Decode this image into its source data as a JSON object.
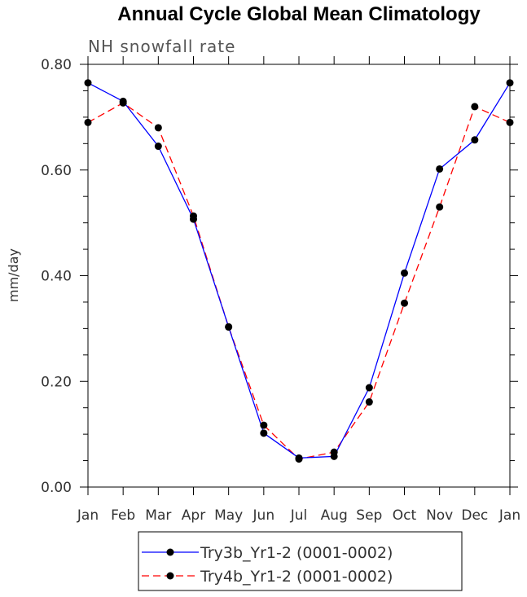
{
  "chart_data": {
    "type": "line",
    "title": "Annual Cycle Global Mean Climatology",
    "subtitle": "NH snowfall rate",
    "ylabel": "mm/day",
    "xlabel": "",
    "categories": [
      "Jan",
      "Feb",
      "Mar",
      "Apr",
      "May",
      "Jun",
      "Jul",
      "Aug",
      "Sep",
      "Oct",
      "Nov",
      "Dec",
      "Jan"
    ],
    "ylim": [
      0.0,
      0.8
    ],
    "yticks": [
      "0.00",
      "0.20",
      "0.40",
      "0.60",
      "0.80"
    ],
    "series": [
      {
        "name": "Try3b_Yr1-2 (0001-0002)",
        "color": "#0000ff",
        "dash": "solid",
        "values": [
          0.765,
          0.73,
          0.645,
          0.507,
          0.303,
          0.102,
          0.055,
          0.058,
          0.188,
          0.405,
          0.602,
          0.657,
          0.765
        ]
      },
      {
        "name": "Try4b_Yr1-2 (0001-0002)",
        "color": "#ff0000",
        "dash": "dashed",
        "values": [
          0.69,
          0.727,
          0.68,
          0.513,
          0.303,
          0.117,
          0.053,
          0.066,
          0.161,
          0.348,
          0.53,
          0.72,
          0.69
        ]
      }
    ],
    "grid": false,
    "legend_position": "bottom-center",
    "marker": "filled-circle"
  }
}
